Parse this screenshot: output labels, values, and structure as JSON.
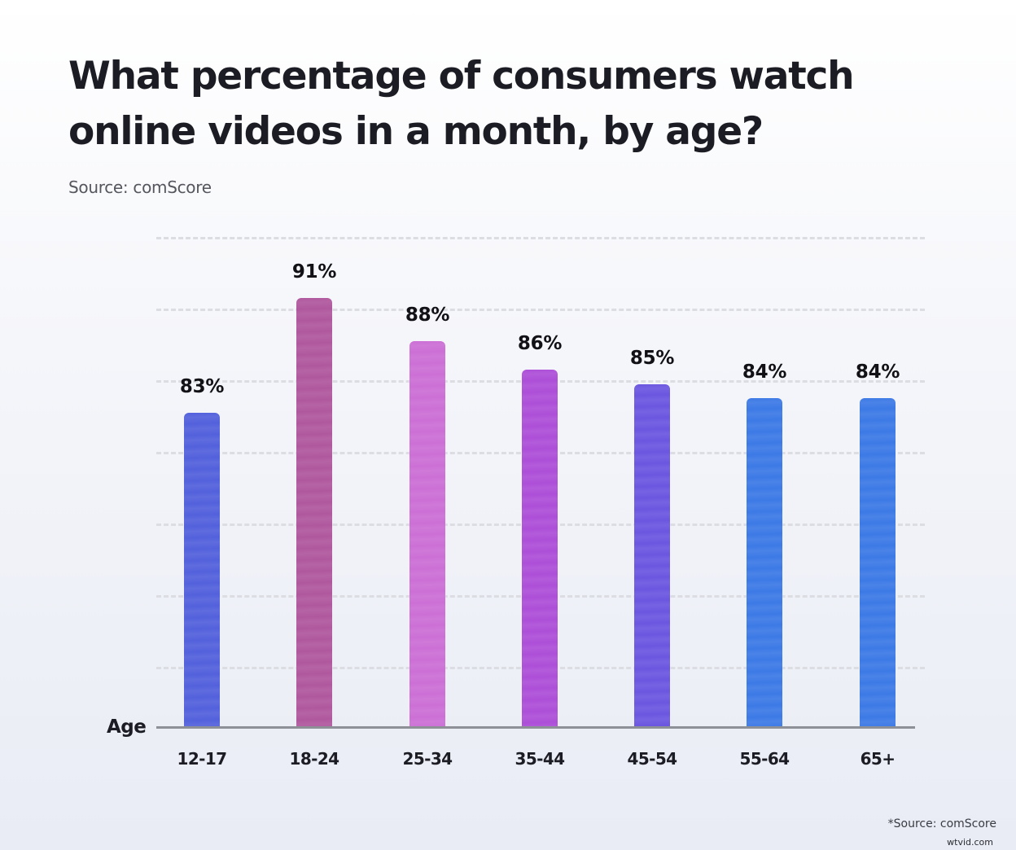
{
  "header": {
    "title": "What percentage of consumers watch online videos in a month, by age?",
    "subtitle": "Source: comScore"
  },
  "footer": {
    "footnote": "*Source: comScore",
    "watermark": "wtvid.com"
  },
  "chart_data": {
    "type": "bar",
    "title": "What percentage of consumers watch online videos in a month, by age?",
    "subtitle": "Source: comScore",
    "xlabel": "Age",
    "ylabel": "",
    "categories": [
      "12-17",
      "18-24",
      "25-34",
      "35-44",
      "45-54",
      "55-64",
      "65+"
    ],
    "values": [
      83,
      91,
      88,
      86,
      85,
      84,
      84
    ],
    "value_labels": [
      "83%",
      "91%",
      "88%",
      "86%",
      "85%",
      "84%",
      "84%"
    ],
    "unit": "%",
    "grid": true,
    "legend": null,
    "bar_colors": [
      "#5361dc",
      "#b0589e",
      "#cc6fd6",
      "#ad4fd8",
      "#6b57e0",
      "#3d7ae6",
      "#3d7ae6"
    ],
    "annotations": [
      "*Source: comScore"
    ]
  }
}
